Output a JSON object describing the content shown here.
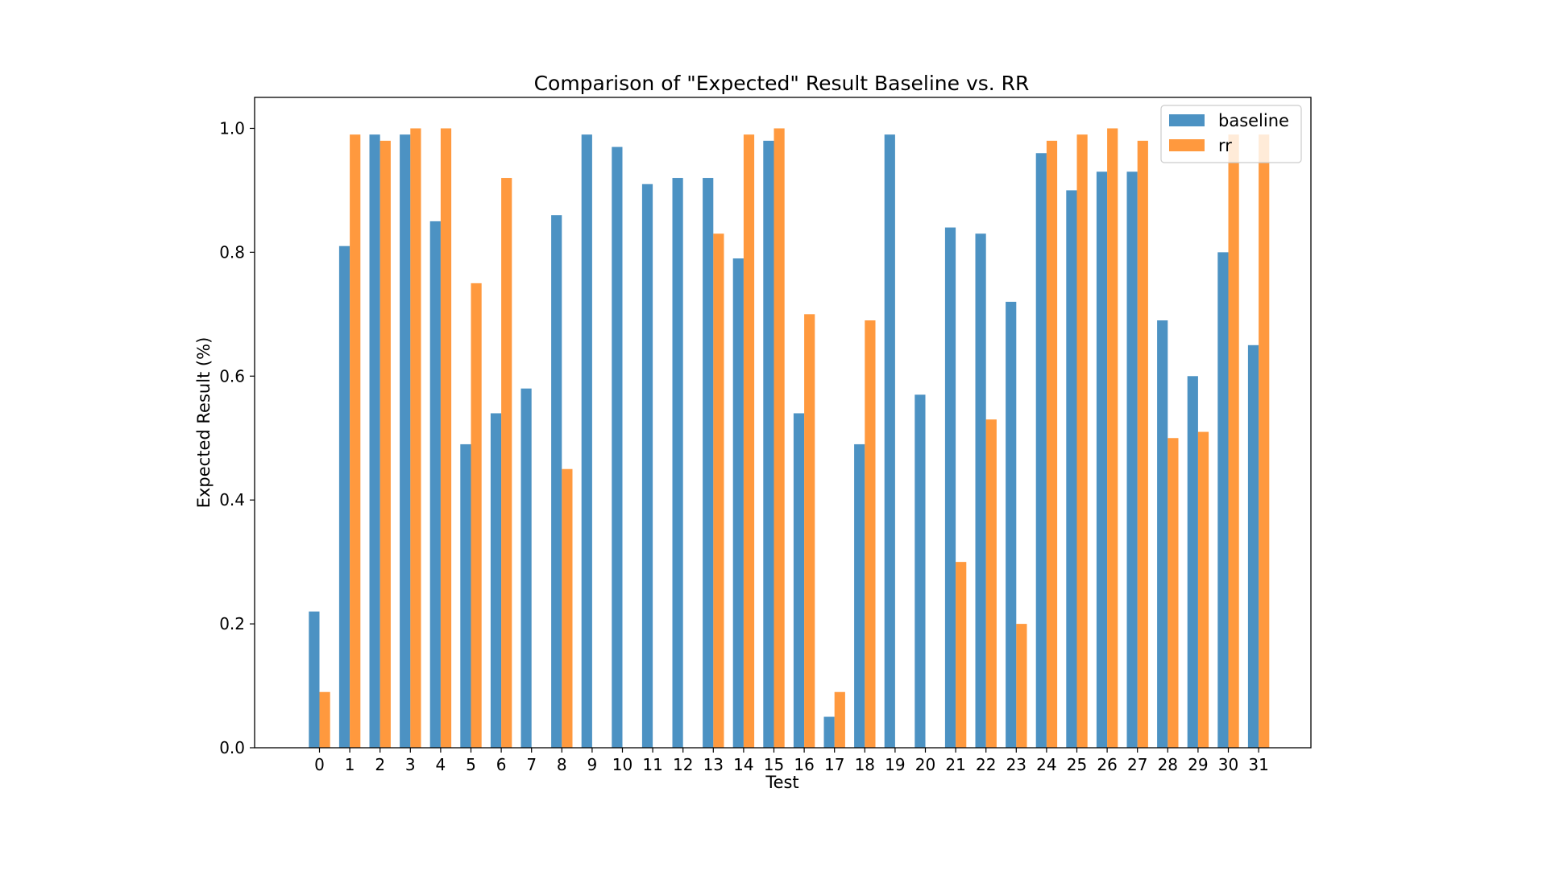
{
  "chart_data": {
    "type": "bar",
    "title": "Comparison of \"Expected\" Result Baseline vs. RR",
    "xlabel": "Test",
    "ylabel": "Expected Result (%)",
    "categories": [
      "0",
      "1",
      "2",
      "3",
      "4",
      "5",
      "6",
      "7",
      "8",
      "9",
      "10",
      "11",
      "12",
      "13",
      "14",
      "15",
      "16",
      "17",
      "18",
      "19",
      "20",
      "21",
      "22",
      "23",
      "24",
      "25",
      "26",
      "27",
      "28",
      "29",
      "30",
      "31"
    ],
    "series": [
      {
        "name": "baseline",
        "color": "#1f77b4",
        "values": [
          0.22,
          0.81,
          0.99,
          0.99,
          0.85,
          0.49,
          0.54,
          0.58,
          0.86,
          0.99,
          0.97,
          0.91,
          0.92,
          0.92,
          0.79,
          0.98,
          0.54,
          0.05,
          0.49,
          0.99,
          0.57,
          0.84,
          0.83,
          0.72,
          0.96,
          0.9,
          0.93,
          0.93,
          0.69,
          0.6,
          0.8,
          0.65
        ]
      },
      {
        "name": "rr",
        "color": "#ff7f0e",
        "values": [
          0.09,
          0.99,
          0.98,
          1.0,
          1.0,
          0.75,
          0.92,
          0,
          0.45,
          0,
          0,
          0,
          0,
          0.83,
          0.99,
          1.0,
          0.7,
          0.09,
          0.69,
          0,
          0,
          0.3,
          0.53,
          0.2,
          0.98,
          0.99,
          1.0,
          0.98,
          0.5,
          0.51,
          0.99,
          0.99
        ]
      }
    ],
    "ylim": [
      0,
      1.05
    ],
    "yticks": [
      "0.0",
      "0.2",
      "0.4",
      "0.6",
      "0.8",
      "1.0"
    ],
    "grid": false,
    "legend_position": "top-right",
    "bar_opacity": 0.8
  }
}
